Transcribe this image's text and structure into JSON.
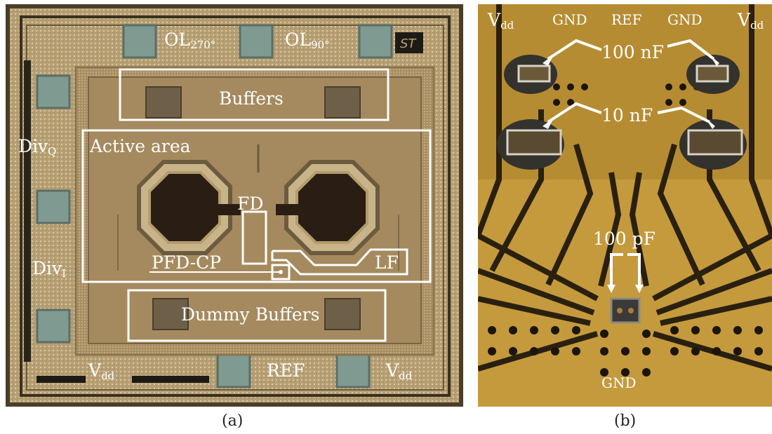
{
  "panel_a": {
    "caption": "(a)",
    "labels": {
      "ol270": {
        "base": "OL",
        "sub": "270°"
      },
      "ol90": {
        "base": "OL",
        "sub": "90°"
      },
      "buffers": "Buffers",
      "divq": {
        "base": "Div",
        "sub": "Q"
      },
      "active_area": "Active area",
      "fd": "FD",
      "divi": {
        "base": "Div",
        "sub": "I"
      },
      "pfd_cp": "PFD-CP",
      "lf": "LF",
      "dummy_buffers": "Dummy Buffers",
      "vdd_left": {
        "base": "V",
        "sub": "dd"
      },
      "ref": "REF",
      "vdd_right": {
        "base": "V",
        "sub": "dd"
      }
    }
  },
  "panel_b": {
    "caption": "(b)",
    "labels": {
      "vdd_left": {
        "base": "V",
        "sub": "dd"
      },
      "gnd_left": "GND",
      "ref": "REF",
      "gnd_right": "GND",
      "vdd_right": {
        "base": "V",
        "sub": "dd"
      },
      "cap_100nf": "100 nF",
      "cap_10nf": "10 nF",
      "cap_100pf": "100 pF",
      "gnd_bottom": "GND"
    }
  },
  "colors": {
    "die_background": "#b29a72",
    "core_region": "#a48a5e",
    "pad_color": "#7f9a90",
    "pcb_copper": "#c49a3c",
    "pcb_trace_gap": "#2a2010",
    "annotation": "#ffffff"
  }
}
